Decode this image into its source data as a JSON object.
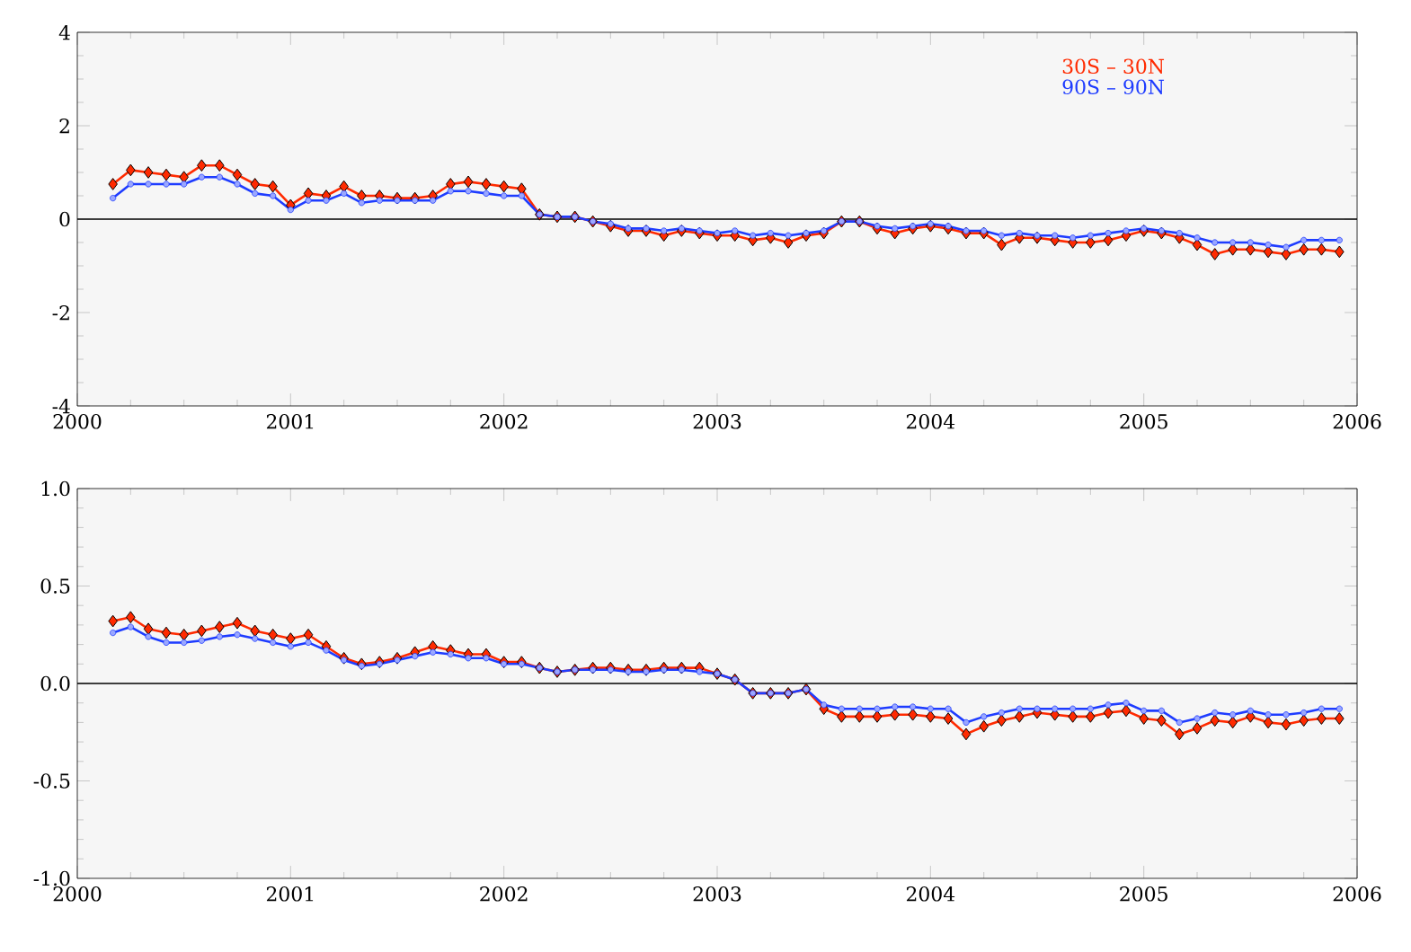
{
  "chart_data": [
    {
      "type": "line",
      "xlim": [
        2000,
        2006
      ],
      "xticks": [
        2000,
        2001,
        2002,
        2003,
        2004,
        2005,
        2006
      ],
      "ylim": [
        -4,
        4
      ],
      "yticks": [
        -4,
        -2,
        0,
        2,
        4
      ],
      "legend": "top right",
      "line_style": "solid",
      "x": [
        2000.167,
        2000.25,
        2000.333,
        2000.417,
        2000.5,
        2000.583,
        2000.667,
        2000.75,
        2000.833,
        2000.917,
        2001.0,
        2001.083,
        2001.167,
        2001.25,
        2001.333,
        2001.417,
        2001.5,
        2001.583,
        2001.667,
        2001.75,
        2001.833,
        2001.917,
        2002.0,
        2002.083,
        2002.167,
        2002.25,
        2002.333,
        2002.417,
        2002.5,
        2002.583,
        2002.667,
        2002.75,
        2002.833,
        2002.917,
        2003.0,
        2003.083,
        2003.167,
        2003.25,
        2003.333,
        2003.417,
        2003.5,
        2003.583,
        2003.667,
        2003.75,
        2003.833,
        2003.917,
        2004.0,
        2004.083,
        2004.167,
        2004.25,
        2004.333,
        2004.417,
        2004.5,
        2004.583,
        2004.667,
        2004.75,
        2004.833,
        2004.917,
        2005.0,
        2005.083,
        2005.167,
        2005.25,
        2005.333,
        2005.417,
        2005.5,
        2005.583,
        2005.667,
        2005.75,
        2005.833,
        2005.917
      ],
      "ref_lines": [
        {
          "axis": "y",
          "value": 0,
          "color": "#000000"
        }
      ],
      "series": [
        {
          "name": "30S – 30N",
          "color": "#ff2a00",
          "marker": "diamond",
          "values": [
            0.75,
            1.05,
            1.0,
            0.95,
            0.9,
            1.15,
            1.15,
            0.95,
            0.75,
            0.7,
            0.3,
            0.55,
            0.5,
            0.7,
            0.5,
            0.5,
            0.45,
            0.45,
            0.5,
            0.75,
            0.8,
            0.75,
            0.7,
            0.65,
            0.1,
            0.05,
            0.05,
            -0.05,
            -0.15,
            -0.25,
            -0.25,
            -0.35,
            -0.25,
            -0.3,
            -0.35,
            -0.35,
            -0.45,
            -0.4,
            -0.5,
            -0.35,
            -0.3,
            -0.05,
            -0.05,
            -0.2,
            -0.3,
            -0.2,
            -0.15,
            -0.2,
            -0.3,
            -0.3,
            -0.55,
            -0.4,
            -0.4,
            -0.45,
            -0.5,
            -0.5,
            -0.45,
            -0.35,
            -0.25,
            -0.3,
            -0.4,
            -0.55,
            -0.75,
            -0.65,
            -0.65,
            -0.7,
            -0.75,
            -0.65,
            -0.65,
            -0.7
          ]
        },
        {
          "name": "90S – 90N",
          "color": "#1e3cff",
          "marker": "circle",
          "values": [
            0.45,
            0.75,
            0.75,
            0.75,
            0.75,
            0.9,
            0.9,
            0.75,
            0.55,
            0.5,
            0.2,
            0.4,
            0.4,
            0.55,
            0.35,
            0.4,
            0.4,
            0.4,
            0.4,
            0.6,
            0.6,
            0.55,
            0.5,
            0.5,
            0.1,
            0.05,
            0.05,
            -0.05,
            -0.1,
            -0.2,
            -0.2,
            -0.25,
            -0.2,
            -0.25,
            -0.3,
            -0.25,
            -0.35,
            -0.3,
            -0.35,
            -0.3,
            -0.25,
            -0.05,
            -0.05,
            -0.15,
            -0.2,
            -0.15,
            -0.1,
            -0.15,
            -0.25,
            -0.25,
            -0.35,
            -0.3,
            -0.35,
            -0.35,
            -0.4,
            -0.35,
            -0.3,
            -0.25,
            -0.2,
            -0.25,
            -0.3,
            -0.4,
            -0.5,
            -0.5,
            -0.5,
            -0.55,
            -0.6,
            -0.45,
            -0.45,
            -0.45
          ]
        }
      ]
    },
    {
      "type": "line",
      "xlim": [
        2000,
        2006
      ],
      "xticks": [
        2000,
        2001,
        2002,
        2003,
        2004,
        2005,
        2006
      ],
      "ylim": [
        -1,
        1
      ],
      "yticks": [
        {
          "value": -1,
          "label": "-1.0"
        },
        {
          "value": -0.5,
          "label": "-0.5"
        },
        {
          "value": 0,
          "label": "0.0"
        },
        {
          "value": 0.5,
          "label": "0.5"
        },
        {
          "value": 1,
          "label": "1.0"
        }
      ],
      "line_style": "solid",
      "x": [
        2000.167,
        2000.25,
        2000.333,
        2000.417,
        2000.5,
        2000.583,
        2000.667,
        2000.75,
        2000.833,
        2000.917,
        2001.0,
        2001.083,
        2001.167,
        2001.25,
        2001.333,
        2001.417,
        2001.5,
        2001.583,
        2001.667,
        2001.75,
        2001.833,
        2001.917,
        2002.0,
        2002.083,
        2002.167,
        2002.25,
        2002.333,
        2002.417,
        2002.5,
        2002.583,
        2002.667,
        2002.75,
        2002.833,
        2002.917,
        2003.0,
        2003.083,
        2003.167,
        2003.25,
        2003.333,
        2003.417,
        2003.5,
        2003.583,
        2003.667,
        2003.75,
        2003.833,
        2003.917,
        2004.0,
        2004.083,
        2004.167,
        2004.25,
        2004.333,
        2004.417,
        2004.5,
        2004.583,
        2004.667,
        2004.75,
        2004.833,
        2004.917,
        2005.0,
        2005.083,
        2005.167,
        2005.25,
        2005.333,
        2005.417,
        2005.5,
        2005.583,
        2005.667,
        2005.75,
        2005.833,
        2005.917
      ],
      "ref_lines": [
        {
          "axis": "y",
          "value": 0,
          "color": "#000000"
        }
      ],
      "series": [
        {
          "color": "#ff2a00",
          "marker": "diamond",
          "values": [
            0.32,
            0.34,
            0.28,
            0.26,
            0.25,
            0.27,
            0.29,
            0.31,
            0.27,
            0.25,
            0.23,
            0.25,
            0.19,
            0.13,
            0.1,
            0.11,
            0.13,
            0.16,
            0.19,
            0.17,
            0.15,
            0.15,
            0.11,
            0.11,
            0.08,
            0.06,
            0.07,
            0.08,
            0.08,
            0.07,
            0.07,
            0.08,
            0.08,
            0.08,
            0.05,
            0.02,
            -0.05,
            -0.05,
            -0.05,
            -0.03,
            -0.13,
            -0.17,
            -0.17,
            -0.17,
            -0.16,
            -0.16,
            -0.17,
            -0.18,
            -0.26,
            -0.22,
            -0.19,
            -0.17,
            -0.15,
            -0.16,
            -0.17,
            -0.17,
            -0.15,
            -0.14,
            -0.18,
            -0.19,
            -0.26,
            -0.23,
            -0.19,
            -0.2,
            -0.17,
            -0.2,
            -0.21,
            -0.19,
            -0.18,
            -0.18
          ]
        },
        {
          "color": "#1e3cff",
          "marker": "circle",
          "values": [
            0.26,
            0.29,
            0.24,
            0.21,
            0.21,
            0.22,
            0.24,
            0.25,
            0.23,
            0.21,
            0.19,
            0.21,
            0.17,
            0.12,
            0.09,
            0.1,
            0.12,
            0.14,
            0.16,
            0.15,
            0.13,
            0.13,
            0.1,
            0.1,
            0.08,
            0.06,
            0.07,
            0.07,
            0.07,
            0.06,
            0.06,
            0.07,
            0.07,
            0.06,
            0.05,
            0.02,
            -0.05,
            -0.05,
            -0.05,
            -0.03,
            -0.11,
            -0.13,
            -0.13,
            -0.13,
            -0.12,
            -0.12,
            -0.13,
            -0.13,
            -0.2,
            -0.17,
            -0.15,
            -0.13,
            -0.13,
            -0.13,
            -0.13,
            -0.13,
            -0.11,
            -0.1,
            -0.14,
            -0.14,
            -0.2,
            -0.18,
            -0.15,
            -0.16,
            -0.14,
            -0.16,
            -0.16,
            -0.15,
            -0.13,
            -0.13
          ]
        }
      ]
    }
  ]
}
